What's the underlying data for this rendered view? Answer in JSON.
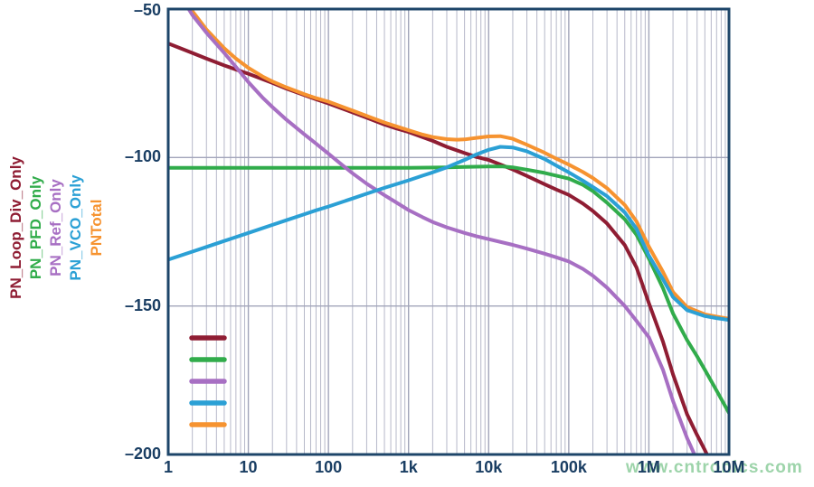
{
  "watermark": "www.cntronics.com",
  "colors": {
    "frame": "#1d4569",
    "tick_text": "#1a3e63",
    "grid_minor": "#b6b8c9",
    "grid_major": "#a2a5ba",
    "watermark": "#8ccd9b"
  },
  "chart_data": {
    "type": "line",
    "title": "",
    "xlabel": "",
    "ylabel": "",
    "x_axis": {
      "scale": "log",
      "min": 1,
      "max": 10000000,
      "ticks": [
        {
          "value": 1,
          "label": "1"
        },
        {
          "value": 10,
          "label": "10"
        },
        {
          "value": 100,
          "label": "100"
        },
        {
          "value": 1000,
          "label": "1k"
        },
        {
          "value": 10000,
          "label": "10k"
        },
        {
          "value": 100000,
          "label": "100k"
        },
        {
          "value": 1000000,
          "label": "1M"
        },
        {
          "value": 10000000,
          "label": "10M"
        }
      ]
    },
    "y_axis": {
      "scale": "linear",
      "min": -200,
      "max": -50,
      "ticks": [
        {
          "value": -50,
          "label": "–50"
        },
        {
          "value": -100,
          "label": "–100"
        },
        {
          "value": -150,
          "label": "–150"
        },
        {
          "value": -200,
          "label": "–200"
        }
      ]
    },
    "grid": {
      "vertical": "log-decades-with-minor-lines",
      "horizontal_at": [
        -100,
        -150
      ]
    },
    "legend": {
      "position": "lower-left-inside",
      "style": "line-swatches",
      "rotated_labels_outside_left": true
    },
    "draw_order": [
      0,
      1,
      4,
      2,
      3
    ],
    "series": [
      {
        "name": "PN_Loop_Div_Only",
        "color": "#8f1d33",
        "points": [
          [
            1,
            -61.6
          ],
          [
            2,
            -64.8
          ],
          [
            3,
            -66.7
          ],
          [
            5,
            -69
          ],
          [
            7,
            -70.4
          ],
          [
            10,
            -71.8
          ],
          [
            20,
            -74.9
          ],
          [
            30,
            -76.8
          ],
          [
            50,
            -79
          ],
          [
            70,
            -80.4
          ],
          [
            100,
            -81.8
          ],
          [
            200,
            -84.8
          ],
          [
            300,
            -86.6
          ],
          [
            500,
            -88.9
          ],
          [
            700,
            -90.2
          ],
          [
            1000,
            -91.4
          ],
          [
            2000,
            -94.4
          ],
          [
            3000,
            -96.4
          ],
          [
            5000,
            -98.5
          ],
          [
            7000,
            -99.8
          ],
          [
            10000,
            -100.8
          ],
          [
            20000,
            -104
          ],
          [
            30000,
            -106.2
          ],
          [
            50000,
            -109
          ],
          [
            70000,
            -110.8
          ],
          [
            100000,
            -112.6
          ],
          [
            150000,
            -115.5
          ],
          [
            200000,
            -118
          ],
          [
            300000,
            -122.2
          ],
          [
            500000,
            -129.5
          ],
          [
            700000,
            -137
          ],
          [
            1000000,
            -149
          ],
          [
            1500000,
            -162
          ],
          [
            2000000,
            -173
          ],
          [
            3000000,
            -186.5
          ],
          [
            4000000,
            -193.5
          ],
          [
            5000000,
            -198.5
          ],
          [
            6000000,
            -203
          ]
        ]
      },
      {
        "name": "PN_PFD_Only",
        "color": "#31ac4b",
        "points": [
          [
            1,
            -103.5
          ],
          [
            10,
            -103.5
          ],
          [
            100,
            -103.5
          ],
          [
            1000,
            -103.5
          ],
          [
            3000,
            -103.3
          ],
          [
            7000,
            -103.1
          ],
          [
            10000,
            -103
          ],
          [
            15000,
            -103
          ],
          [
            20000,
            -103.3
          ],
          [
            30000,
            -104.1
          ],
          [
            50000,
            -105.2
          ],
          [
            70000,
            -106.1
          ],
          [
            100000,
            -107.1
          ],
          [
            150000,
            -109.2
          ],
          [
            200000,
            -111.3
          ],
          [
            300000,
            -115.2
          ],
          [
            500000,
            -120.8
          ],
          [
            700000,
            -126
          ],
          [
            1000000,
            -134
          ],
          [
            1500000,
            -144
          ],
          [
            2000000,
            -152.5
          ],
          [
            3000000,
            -161.5
          ],
          [
            4000000,
            -167
          ],
          [
            5000000,
            -171.5
          ],
          [
            7000000,
            -178.5
          ],
          [
            10000000,
            -186
          ]
        ]
      },
      {
        "name": "PN_Ref_Only",
        "color": "#a76fc3",
        "points": [
          [
            1,
            -43
          ],
          [
            1.8,
            -50
          ],
          [
            2,
            -52
          ],
          [
            3,
            -58
          ],
          [
            5,
            -64.8
          ],
          [
            7,
            -69.5
          ],
          [
            10,
            -74.6
          ],
          [
            15,
            -79.8
          ],
          [
            20,
            -83
          ],
          [
            30,
            -87.3
          ],
          [
            50,
            -92.2
          ],
          [
            70,
            -95.3
          ],
          [
            100,
            -98.7
          ],
          [
            150,
            -102.6
          ],
          [
            200,
            -105.3
          ],
          [
            300,
            -108.8
          ],
          [
            500,
            -112.7
          ],
          [
            700,
            -115.1
          ],
          [
            1000,
            -117.7
          ],
          [
            1500,
            -120.1
          ],
          [
            2000,
            -121.7
          ],
          [
            3000,
            -123.5
          ],
          [
            5000,
            -125.4
          ],
          [
            7000,
            -126.5
          ],
          [
            10000,
            -127.5
          ],
          [
            20000,
            -129.4
          ],
          [
            30000,
            -130.7
          ],
          [
            50000,
            -132.4
          ],
          [
            70000,
            -133.6
          ],
          [
            100000,
            -135
          ],
          [
            150000,
            -137.5
          ],
          [
            200000,
            -139.8
          ],
          [
            300000,
            -143.8
          ],
          [
            500000,
            -150
          ],
          [
            700000,
            -155
          ],
          [
            1000000,
            -160.5
          ],
          [
            1500000,
            -171.5
          ],
          [
            2000000,
            -182
          ],
          [
            3000000,
            -194.5
          ],
          [
            3700000,
            -200
          ],
          [
            4000000,
            -203
          ]
        ]
      },
      {
        "name": "PN_VCO_Only",
        "color": "#2ba0d5",
        "points": [
          [
            1,
            -134.4
          ],
          [
            2,
            -131.7
          ],
          [
            3,
            -130.1
          ],
          [
            5,
            -128.1
          ],
          [
            7,
            -126.8
          ],
          [
            10,
            -125.4
          ],
          [
            20,
            -122.7
          ],
          [
            30,
            -121.1
          ],
          [
            50,
            -119.1
          ],
          [
            70,
            -117.8
          ],
          [
            100,
            -116.5
          ],
          [
            200,
            -113.8
          ],
          [
            300,
            -112.2
          ],
          [
            500,
            -110.2
          ],
          [
            700,
            -109
          ],
          [
            1000,
            -107.7
          ],
          [
            1500,
            -106.1
          ],
          [
            2000,
            -105
          ],
          [
            3000,
            -103.3
          ],
          [
            5000,
            -100.8
          ],
          [
            7000,
            -99
          ],
          [
            10000,
            -97.4
          ],
          [
            14000,
            -96.4
          ],
          [
            20000,
            -96.6
          ],
          [
            30000,
            -97.9
          ],
          [
            50000,
            -100.5
          ],
          [
            70000,
            -102.7
          ],
          [
            100000,
            -105
          ],
          [
            150000,
            -107.8
          ],
          [
            200000,
            -109.9
          ],
          [
            300000,
            -113
          ],
          [
            500000,
            -118.5
          ],
          [
            700000,
            -124
          ],
          [
            1000000,
            -133
          ],
          [
            1500000,
            -141
          ],
          [
            2000000,
            -147
          ],
          [
            3000000,
            -151.4
          ],
          [
            5000000,
            -153.4
          ],
          [
            7000000,
            -154.1
          ],
          [
            10000000,
            -154.7
          ]
        ]
      },
      {
        "name": "PNTotal",
        "color": "#f69330",
        "points": [
          [
            1,
            -42
          ],
          [
            1.9,
            -50
          ],
          [
            2,
            -50.7
          ],
          [
            3,
            -56.9
          ],
          [
            5,
            -63.2
          ],
          [
            7,
            -66.7
          ],
          [
            10,
            -69.8
          ],
          [
            15,
            -72.7
          ],
          [
            20,
            -74.4
          ],
          [
            30,
            -76.4
          ],
          [
            50,
            -78.7
          ],
          [
            70,
            -80
          ],
          [
            100,
            -81.2
          ],
          [
            200,
            -84.2
          ],
          [
            300,
            -86
          ],
          [
            500,
            -88.2
          ],
          [
            700,
            -89.5
          ],
          [
            1000,
            -90.8
          ],
          [
            1500,
            -92.3
          ],
          [
            2000,
            -93.1
          ],
          [
            3000,
            -93.8
          ],
          [
            4000,
            -94
          ],
          [
            5000,
            -93.9
          ],
          [
            7000,
            -93.4
          ],
          [
            10000,
            -92.9
          ],
          [
            14000,
            -92.8
          ],
          [
            20000,
            -93.7
          ],
          [
            30000,
            -95.7
          ],
          [
            50000,
            -98.4
          ],
          [
            70000,
            -100.4
          ],
          [
            100000,
            -102.4
          ],
          [
            150000,
            -104.9
          ],
          [
            200000,
            -106.9
          ],
          [
            300000,
            -110.3
          ],
          [
            500000,
            -116
          ],
          [
            700000,
            -121.5
          ],
          [
            1000000,
            -130
          ],
          [
            1500000,
            -138.5
          ],
          [
            2000000,
            -145.3
          ],
          [
            3000000,
            -150.4
          ],
          [
            5000000,
            -152.8
          ],
          [
            7000000,
            -153.6
          ],
          [
            10000000,
            -154.3
          ]
        ]
      }
    ]
  }
}
